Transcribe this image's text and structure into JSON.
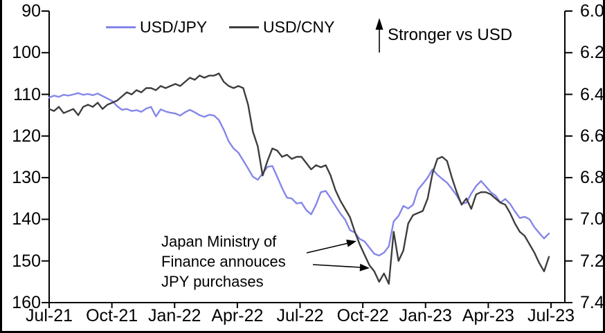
{
  "legend": {
    "items": [
      {
        "label": "USD/JPY",
        "color": "#8585ea"
      },
      {
        "label": "USD/CNY",
        "color": "#3d3d3d"
      }
    ]
  },
  "annotations": {
    "stronger_label": "Stronger vs USD",
    "intervention": {
      "lines": [
        "Japan Ministry of",
        "Finance annouces",
        "JPY purchases"
      ]
    }
  },
  "frame_color": "#000000",
  "chart_data": {
    "type": "line",
    "grid": false,
    "legend_position": "top-center",
    "x_tick_labels": [
      "Jul-21",
      "Oct-21",
      "Jan-22",
      "Apr-22",
      "Jul-22",
      "Oct-22",
      "Jan-23",
      "Apr-23",
      "Jul-23"
    ],
    "x_span": "weekly points, Jul-2021 to Jul-2023",
    "y_left": {
      "series_name": "USD/JPY",
      "ticks": [
        "90",
        "100",
        "110",
        "120",
        "130",
        "140",
        "150",
        "160"
      ],
      "range": [
        90,
        160
      ],
      "inverted": true
    },
    "y_right": {
      "series_name": "USD/CNY",
      "ticks": [
        "6.0",
        "6.2",
        "6.4",
        "6.6",
        "6.8",
        "7.0",
        "7.2",
        "7.4"
      ],
      "range": [
        6.0,
        7.4
      ],
      "inverted": true
    },
    "series": [
      {
        "name": "USD/JPY",
        "axis": "left",
        "color": "#8585ea",
        "values": [
          110.8,
          110.3,
          110.6,
          110.1,
          110.3,
          110.0,
          109.7,
          110.1,
          109.9,
          110.2,
          109.8,
          110.4,
          111.0,
          111.6,
          112.8,
          113.7,
          113.5,
          114.0,
          113.8,
          114.2,
          113.4,
          113.0,
          115.3,
          113.6,
          114.1,
          114.4,
          114.6,
          115.1,
          114.3,
          113.7,
          114.3,
          115.0,
          115.4,
          114.9,
          115.1,
          116.2,
          118.5,
          121.3,
          123.0,
          124.0,
          125.9,
          127.8,
          129.8,
          130.5,
          129.0,
          127.4,
          127.2,
          129.8,
          132.5,
          134.8,
          135.0,
          136.2,
          136.0,
          137.8,
          138.8,
          136.5,
          133.5,
          133.2,
          134.9,
          136.8,
          138.6,
          140.1,
          142.6,
          143.2,
          144.7,
          145.3,
          146.8,
          148.3,
          148.7,
          148.0,
          146.5,
          140.5,
          139.2,
          136.8,
          137.4,
          136.5,
          132.9,
          131.5,
          130.0,
          128.0,
          129.3,
          130.3,
          131.2,
          132.7,
          134.3,
          136.3,
          136.0,
          133.8,
          132.0,
          130.8,
          132.1,
          133.5,
          134.3,
          136.0,
          135.1,
          136.3,
          138.1,
          139.7,
          139.4,
          140.0,
          141.9,
          143.3,
          144.6,
          143.4
        ]
      },
      {
        "name": "USD/CNY",
        "axis": "right",
        "color": "#3d3d3d",
        "values": [
          6.47,
          6.48,
          6.46,
          6.49,
          6.48,
          6.47,
          6.5,
          6.46,
          6.45,
          6.46,
          6.44,
          6.47,
          6.45,
          6.44,
          6.43,
          6.41,
          6.39,
          6.4,
          6.38,
          6.39,
          6.37,
          6.37,
          6.38,
          6.36,
          6.37,
          6.36,
          6.35,
          6.36,
          6.34,
          6.32,
          6.33,
          6.31,
          6.32,
          6.31,
          6.31,
          6.3,
          6.34,
          6.36,
          6.37,
          6.36,
          6.37,
          6.45,
          6.58,
          6.65,
          6.79,
          6.72,
          6.66,
          6.67,
          6.7,
          6.69,
          6.71,
          6.7,
          6.7,
          6.73,
          6.76,
          6.74,
          6.75,
          6.74,
          6.79,
          6.86,
          6.91,
          6.95,
          6.99,
          7.06,
          7.12,
          7.17,
          7.22,
          7.25,
          7.3,
          7.26,
          7.31,
          7.06,
          7.2,
          7.15,
          7.02,
          6.98,
          6.97,
          6.96,
          6.9,
          6.78,
          6.71,
          6.7,
          6.72,
          6.8,
          6.87,
          6.93,
          6.9,
          6.95,
          6.88,
          6.87,
          6.87,
          6.88,
          6.9,
          6.92,
          6.93,
          6.97,
          7.02,
          7.06,
          7.08,
          7.12,
          7.16,
          7.21,
          7.25,
          7.18
        ]
      }
    ]
  }
}
